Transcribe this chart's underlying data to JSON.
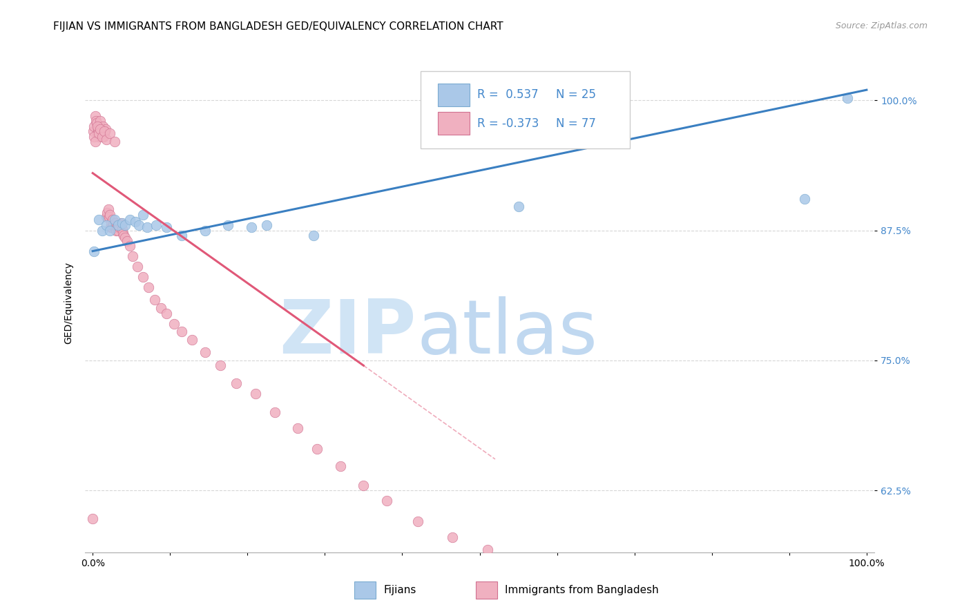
{
  "title": "FIJIAN VS IMMIGRANTS FROM BANGLADESH GED/EQUIVALENCY CORRELATION CHART",
  "source": "Source: ZipAtlas.com",
  "ylabel": "GED/Equivalency",
  "ytick_labels": [
    "62.5%",
    "75.0%",
    "87.5%",
    "100.0%"
  ],
  "ytick_values": [
    0.625,
    0.75,
    0.875,
    1.0
  ],
  "xlim": [
    -0.01,
    1.01
  ],
  "ylim": [
    0.565,
    1.045
  ],
  "fijians_color": "#aac8e8",
  "fijians_edge": "#7aaad0",
  "fijians_line_color": "#3a7fc1",
  "bangladesh_color": "#f0b0c0",
  "bangladesh_edge": "#d07090",
  "bangladesh_line_color": "#e05878",
  "fijians_points_x": [
    0.002,
    0.008,
    0.012,
    0.018,
    0.022,
    0.028,
    0.033,
    0.038,
    0.042,
    0.048,
    0.055,
    0.06,
    0.065,
    0.07,
    0.082,
    0.095,
    0.115,
    0.145,
    0.175,
    0.205,
    0.225,
    0.285,
    0.55,
    0.92,
    0.975
  ],
  "fijians_points_y": [
    0.855,
    0.885,
    0.875,
    0.88,
    0.875,
    0.885,
    0.88,
    0.882,
    0.88,
    0.885,
    0.883,
    0.88,
    0.89,
    0.878,
    0.88,
    0.878,
    0.87,
    0.875,
    0.88,
    0.878,
    0.88,
    0.87,
    0.898,
    0.905,
    1.002
  ],
  "bangladesh_points_x": [
    0.0,
    0.001,
    0.002,
    0.003,
    0.004,
    0.005,
    0.006,
    0.007,
    0.008,
    0.009,
    0.01,
    0.011,
    0.012,
    0.013,
    0.014,
    0.015,
    0.016,
    0.017,
    0.018,
    0.019,
    0.02,
    0.021,
    0.022,
    0.023,
    0.024,
    0.025,
    0.026,
    0.027,
    0.028,
    0.029,
    0.03,
    0.031,
    0.032,
    0.033,
    0.034,
    0.035,
    0.036,
    0.037,
    0.038,
    0.039,
    0.04,
    0.042,
    0.044,
    0.048,
    0.052,
    0.058,
    0.065,
    0.072,
    0.08,
    0.088,
    0.095,
    0.105,
    0.115,
    0.128,
    0.145,
    0.165,
    0.185,
    0.21,
    0.235,
    0.265,
    0.29,
    0.32,
    0.35,
    0.38,
    0.42,
    0.465,
    0.51,
    0.002,
    0.003,
    0.006,
    0.008,
    0.01,
    0.012,
    0.015,
    0.018,
    0.022,
    0.028
  ],
  "bangladesh_points_y": [
    0.598,
    0.97,
    0.975,
    0.985,
    0.98,
    0.978,
    0.968,
    0.972,
    0.965,
    0.975,
    0.98,
    0.968,
    0.97,
    0.975,
    0.965,
    0.968,
    0.97,
    0.972,
    0.888,
    0.892,
    0.895,
    0.888,
    0.89,
    0.878,
    0.882,
    0.878,
    0.885,
    0.88,
    0.878,
    0.882,
    0.875,
    0.878,
    0.88,
    0.875,
    0.88,
    0.878,
    0.882,
    0.88,
    0.876,
    0.872,
    0.87,
    0.868,
    0.865,
    0.86,
    0.85,
    0.84,
    0.83,
    0.82,
    0.808,
    0.8,
    0.795,
    0.785,
    0.778,
    0.77,
    0.758,
    0.745,
    0.728,
    0.718,
    0.7,
    0.685,
    0.665,
    0.648,
    0.63,
    0.615,
    0.595,
    0.58,
    0.568,
    0.965,
    0.96,
    0.975,
    0.968,
    0.972,
    0.965,
    0.97,
    0.962,
    0.968,
    0.96
  ],
  "blue_line_x0": 0.0,
  "blue_line_y0": 0.855,
  "blue_line_x1": 1.0,
  "blue_line_y1": 1.01,
  "pink_line_x0": 0.0,
  "pink_line_y0": 0.93,
  "pink_line_x1_solid": 0.35,
  "pink_line_y1_solid": 0.745,
  "pink_line_x1_dash": 0.52,
  "pink_line_y1_dash": 0.655,
  "watermark_zip_color": "#d0e4f5",
  "watermark_atlas_color": "#c0d8f0",
  "background_color": "#ffffff",
  "title_fontsize": 11,
  "tick_fontsize": 10,
  "ytick_color": "#4488cc",
  "legend_R1": "R =  0.537",
  "legend_N1": "N = 25",
  "legend_R2": "R = -0.373",
  "legend_N2": "N = 77"
}
